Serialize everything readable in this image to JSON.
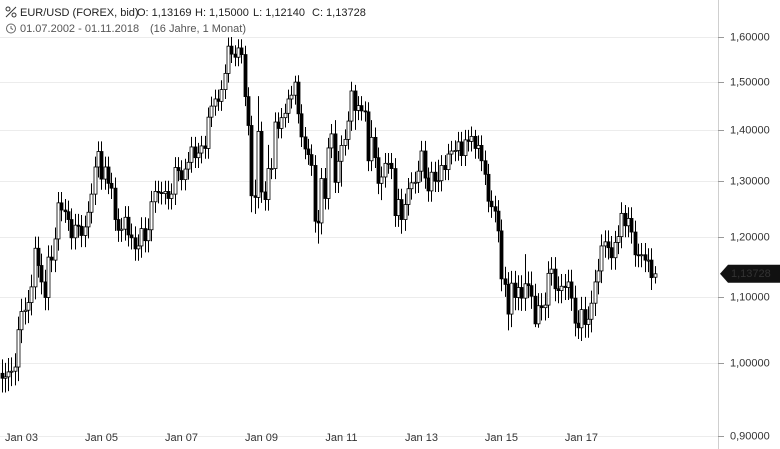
{
  "chart_data": {
    "type": "candlestick",
    "title": "EUR/USD (FOREX, bid)",
    "ohlc_labels": [
      "O: 1,13169",
      "H: 1,15000",
      "L: 1,12140",
      "C: 1,13728"
    ],
    "period": "01.07.2002 - 01.11.2018",
    "period_note": "(16 Jahre, 1 Monat)",
    "log_scale": true,
    "grid": true,
    "up_color": "#ffffff",
    "down_color": "#000000",
    "ylim": [
      0.883,
      1.689
    ],
    "yticks": [
      {
        "value": 0.9,
        "label": "0,90000"
      },
      {
        "value": 1.0,
        "label": "1,00000"
      },
      {
        "value": 1.1,
        "label": "1,10000"
      },
      {
        "value": 1.2,
        "label": "1,20000"
      },
      {
        "value": 1.3,
        "label": "1,30000"
      },
      {
        "value": 1.4,
        "label": "1,40000"
      },
      {
        "value": 1.5,
        "label": "1,50000"
      },
      {
        "value": 1.6,
        "label": "1,60000"
      }
    ],
    "last_price_label": "1,13728",
    "categories": [
      null,
      null,
      null,
      null,
      null,
      null,
      "Jan 03",
      null,
      null,
      null,
      null,
      null,
      null,
      null,
      null,
      null,
      null,
      null,
      null,
      null,
      null,
      null,
      null,
      null,
      null,
      null,
      null,
      null,
      null,
      null,
      "Jan 05",
      null,
      null,
      null,
      null,
      null,
      null,
      null,
      null,
      null,
      null,
      null,
      null,
      null,
      null,
      null,
      null,
      null,
      null,
      null,
      null,
      null,
      null,
      null,
      "Jan 07",
      null,
      null,
      null,
      null,
      null,
      null,
      null,
      null,
      null,
      null,
      null,
      null,
      null,
      null,
      null,
      null,
      null,
      null,
      null,
      null,
      null,
      null,
      null,
      "Jan 09",
      null,
      null,
      null,
      null,
      null,
      null,
      null,
      null,
      null,
      null,
      null,
      null,
      null,
      null,
      null,
      null,
      null,
      null,
      null,
      null,
      null,
      null,
      null,
      "Jan 11",
      null,
      null,
      null,
      null,
      null,
      null,
      null,
      null,
      null,
      null,
      null,
      null,
      null,
      null,
      null,
      null,
      null,
      null,
      null,
      null,
      null,
      null,
      null,
      "Jan 13",
      null,
      null,
      null,
      null,
      null,
      null,
      null,
      null,
      null,
      null,
      null,
      null,
      null,
      null,
      null,
      null,
      null,
      null,
      null,
      null,
      null,
      null,
      null,
      "Jan 15",
      null,
      null,
      null,
      null,
      null,
      null,
      null,
      null,
      null,
      null,
      null,
      null,
      null,
      null,
      null,
      null,
      null,
      null,
      null,
      null,
      null,
      null,
      null,
      "Jan 17",
      null,
      null,
      null,
      null,
      null,
      null,
      null,
      null,
      null,
      null,
      null,
      null,
      null,
      null,
      null,
      null,
      null,
      null,
      null,
      null,
      null,
      null
    ],
    "open": [
      0.985,
      0.978,
      0.98,
      0.987,
      0.988,
      0.994,
      1.049,
      1.077,
      1.079,
      1.091,
      1.116,
      1.18,
      1.151,
      1.124,
      1.099,
      1.165,
      1.16,
      1.196,
      1.26,
      1.247,
      1.244,
      1.23,
      1.198,
      1.22,
      1.218,
      1.202,
      1.217,
      1.243,
      1.276,
      1.327,
      1.357,
      1.304,
      1.327,
      1.296,
      1.287,
      1.23,
      1.211,
      1.213,
      1.234,
      1.203,
      1.198,
      1.179,
      1.184,
      1.214,
      1.193,
      1.212,
      1.262,
      1.281,
      1.279,
      1.277,
      1.281,
      1.268,
      1.276,
      1.326,
      1.32,
      1.303,
      1.323,
      1.336,
      1.366,
      1.345,
      1.354,
      1.368,
      1.363,
      1.426,
      1.449,
      1.464,
      1.459,
      1.484,
      1.519,
      1.58,
      1.562,
      1.555,
      1.576,
      1.561,
      1.469,
      1.409,
      1.273,
      1.27,
      1.397,
      1.28,
      1.266,
      1.324,
      1.324,
      1.416,
      1.403,
      1.425,
      1.434,
      1.464,
      1.472,
      1.5,
      1.433,
      1.386,
      1.362,
      1.351,
      1.33,
      1.227,
      1.224,
      1.305,
      1.268,
      1.364,
      1.392,
      1.298,
      1.338,
      1.369,
      1.381,
      1.418,
      1.481,
      1.44,
      1.45,
      1.439,
      1.437,
      1.339,
      1.385,
      1.345,
      1.296,
      1.308,
      1.334,
      1.334,
      1.324,
      1.237,
      1.266,
      1.23,
      1.257,
      1.286,
      1.297,
      1.298,
      1.319,
      1.358,
      1.306,
      1.282,
      1.317,
      1.3,
      1.301,
      1.33,
      1.322,
      1.352,
      1.358,
      1.359,
      1.376,
      1.349,
      1.38,
      1.377,
      1.387,
      1.363,
      1.369,
      1.339,
      1.313,
      1.263,
      1.253,
      1.245,
      1.21,
      1.129,
      1.12,
      1.073,
      1.122,
      1.099,
      1.115,
      1.098,
      1.121,
      1.118,
      1.101,
      1.058,
      1.086,
      1.083,
      1.087,
      1.138,
      1.145,
      1.113,
      1.11,
      1.117,
      1.115,
      1.124,
      1.098,
      1.059,
      1.052,
      1.08,
      1.057,
      1.065,
      1.09,
      1.124,
      1.142,
      1.184,
      1.191,
      1.181,
      1.164,
      1.19,
      1.2,
      1.241,
      1.219,
      1.232,
      1.208,
      1.169,
      1.168,
      1.169,
      1.16,
      1.16,
      1.13169
    ],
    "high": [
      1.005,
      1.0,
      1.007,
      1.008,
      1.014,
      1.069,
      1.097,
      1.099,
      1.111,
      1.136,
      1.2,
      1.2,
      1.171,
      1.144,
      1.185,
      1.185,
      1.216,
      1.28,
      1.28,
      1.267,
      1.264,
      1.25,
      1.24,
      1.24,
      1.238,
      1.237,
      1.263,
      1.296,
      1.347,
      1.377,
      1.377,
      1.347,
      1.347,
      1.316,
      1.307,
      1.25,
      1.233,
      1.254,
      1.254,
      1.223,
      1.218,
      1.204,
      1.234,
      1.234,
      1.232,
      1.282,
      1.301,
      1.301,
      1.299,
      1.301,
      1.301,
      1.296,
      1.346,
      1.346,
      1.34,
      1.343,
      1.356,
      1.386,
      1.386,
      1.374,
      1.388,
      1.388,
      1.446,
      1.469,
      1.484,
      1.484,
      1.504,
      1.539,
      1.6,
      1.601,
      1.582,
      1.596,
      1.596,
      1.581,
      1.489,
      1.429,
      1.303,
      1.47,
      1.417,
      1.3,
      1.37,
      1.344,
      1.436,
      1.436,
      1.445,
      1.454,
      1.484,
      1.492,
      1.514,
      1.515,
      1.453,
      1.406,
      1.382,
      1.371,
      1.35,
      1.247,
      1.325,
      1.325,
      1.384,
      1.412,
      1.42,
      1.358,
      1.389,
      1.401,
      1.438,
      1.501,
      1.494,
      1.47,
      1.47,
      1.459,
      1.457,
      1.42,
      1.405,
      1.365,
      1.328,
      1.354,
      1.354,
      1.354,
      1.344,
      1.286,
      1.286,
      1.277,
      1.306,
      1.317,
      1.318,
      1.339,
      1.378,
      1.378,
      1.326,
      1.337,
      1.337,
      1.341,
      1.35,
      1.35,
      1.372,
      1.378,
      1.379,
      1.396,
      1.396,
      1.4,
      1.4,
      1.407,
      1.4,
      1.389,
      1.389,
      1.359,
      1.333,
      1.283,
      1.273,
      1.265,
      1.23,
      1.149,
      1.14,
      1.142,
      1.142,
      1.135,
      1.135,
      1.17,
      1.141,
      1.141,
      1.121,
      1.106,
      1.106,
      1.107,
      1.158,
      1.165,
      1.165,
      1.133,
      1.137,
      1.137,
      1.144,
      1.144,
      1.118,
      1.079,
      1.1,
      1.1,
      1.085,
      1.11,
      1.144,
      1.162,
      1.204,
      1.211,
      1.211,
      1.201,
      1.21,
      1.22,
      1.261,
      1.256,
      1.252,
      1.252,
      1.228,
      1.188,
      1.189,
      1.189,
      1.18,
      1.18,
      1.15
    ],
    "low": [
      0.958,
      0.958,
      0.96,
      0.967,
      0.968,
      0.974,
      1.029,
      1.057,
      1.059,
      1.071,
      1.096,
      1.131,
      1.104,
      1.079,
      1.079,
      1.14,
      1.14,
      1.176,
      1.227,
      1.224,
      1.21,
      1.178,
      1.178,
      1.198,
      1.182,
      1.182,
      1.197,
      1.223,
      1.256,
      1.307,
      1.284,
      1.284,
      1.276,
      1.267,
      1.21,
      1.191,
      1.191,
      1.193,
      1.183,
      1.178,
      1.159,
      1.159,
      1.164,
      1.173,
      1.173,
      1.192,
      1.242,
      1.259,
      1.257,
      1.257,
      1.248,
      1.248,
      1.256,
      1.3,
      1.283,
      1.283,
      1.303,
      1.316,
      1.325,
      1.325,
      1.334,
      1.343,
      1.343,
      1.406,
      1.429,
      1.439,
      1.439,
      1.464,
      1.499,
      1.542,
      1.535,
      1.535,
      1.541,
      1.449,
      1.389,
      1.243,
      1.24,
      1.25,
      1.26,
      1.246,
      1.246,
      1.304,
      1.304,
      1.383,
      1.383,
      1.405,
      1.414,
      1.444,
      1.452,
      1.413,
      1.366,
      1.342,
      1.331,
      1.31,
      1.207,
      1.188,
      1.204,
      1.248,
      1.248,
      1.344,
      1.278,
      1.278,
      1.29,
      1.349,
      1.361,
      1.398,
      1.4,
      1.42,
      1.419,
      1.417,
      1.319,
      1.319,
      1.325,
      1.276,
      1.265,
      1.288,
      1.314,
      1.304,
      1.217,
      1.217,
      1.205,
      1.21,
      1.237,
      1.266,
      1.277,
      1.278,
      1.299,
      1.286,
      1.262,
      1.262,
      1.28,
      1.28,
      1.281,
      1.302,
      1.302,
      1.332,
      1.338,
      1.339,
      1.329,
      1.329,
      1.357,
      1.357,
      1.343,
      1.343,
      1.319,
      1.293,
      1.243,
      1.233,
      1.225,
      1.19,
      1.109,
      1.1,
      1.048,
      1.053,
      1.079,
      1.079,
      1.078,
      1.078,
      1.098,
      1.081,
      1.053,
      1.052,
      1.063,
      1.063,
      1.067,
      1.118,
      1.093,
      1.09,
      1.09,
      1.095,
      1.095,
      1.078,
      1.039,
      1.035,
      1.032,
      1.037,
      1.037,
      1.045,
      1.07,
      1.104,
      1.122,
      1.164,
      1.161,
      1.144,
      1.144,
      1.17,
      1.18,
      1.199,
      1.199,
      1.188,
      1.149,
      1.148,
      1.148,
      1.14,
      1.14,
      1.111,
      1.1214
    ],
    "close": [
      0.978,
      0.98,
      0.987,
      0.988,
      0.994,
      1.049,
      1.077,
      1.079,
      1.091,
      1.116,
      1.18,
      1.151,
      1.124,
      1.099,
      1.165,
      1.16,
      1.196,
      1.26,
      1.247,
      1.244,
      1.23,
      1.198,
      1.22,
      1.218,
      1.202,
      1.217,
      1.243,
      1.276,
      1.327,
      1.357,
      1.304,
      1.327,
      1.296,
      1.287,
      1.23,
      1.211,
      1.213,
      1.234,
      1.203,
      1.198,
      1.179,
      1.184,
      1.214,
      1.193,
      1.212,
      1.262,
      1.281,
      1.279,
      1.277,
      1.281,
      1.268,
      1.276,
      1.326,
      1.32,
      1.303,
      1.323,
      1.336,
      1.366,
      1.345,
      1.354,
      1.368,
      1.363,
      1.426,
      1.449,
      1.464,
      1.459,
      1.484,
      1.519,
      1.58,
      1.562,
      1.555,
      1.576,
      1.561,
      1.469,
      1.409,
      1.273,
      1.27,
      1.397,
      1.28,
      1.266,
      1.324,
      1.324,
      1.416,
      1.403,
      1.425,
      1.434,
      1.464,
      1.472,
      1.5,
      1.433,
      1.386,
      1.362,
      1.351,
      1.33,
      1.227,
      1.224,
      1.305,
      1.268,
      1.364,
      1.392,
      1.298,
      1.338,
      1.369,
      1.381,
      1.418,
      1.481,
      1.44,
      1.45,
      1.439,
      1.437,
      1.339,
      1.385,
      1.345,
      1.296,
      1.308,
      1.334,
      1.334,
      1.324,
      1.237,
      1.266,
      1.23,
      1.257,
      1.286,
      1.297,
      1.298,
      1.319,
      1.358,
      1.306,
      1.282,
      1.317,
      1.3,
      1.301,
      1.33,
      1.322,
      1.352,
      1.358,
      1.359,
      1.376,
      1.349,
      1.38,
      1.377,
      1.387,
      1.363,
      1.369,
      1.339,
      1.313,
      1.263,
      1.253,
      1.245,
      1.21,
      1.129,
      1.12,
      1.073,
      1.122,
      1.099,
      1.115,
      1.098,
      1.121,
      1.118,
      1.101,
      1.058,
      1.086,
      1.083,
      1.087,
      1.138,
      1.145,
      1.113,
      1.11,
      1.117,
      1.115,
      1.124,
      1.098,
      1.059,
      1.052,
      1.08,
      1.057,
      1.065,
      1.09,
      1.124,
      1.142,
      1.184,
      1.191,
      1.181,
      1.164,
      1.19,
      1.2,
      1.241,
      1.219,
      1.232,
      1.208,
      1.169,
      1.168,
      1.169,
      1.16,
      1.16,
      1.131,
      1.13728
    ]
  }
}
